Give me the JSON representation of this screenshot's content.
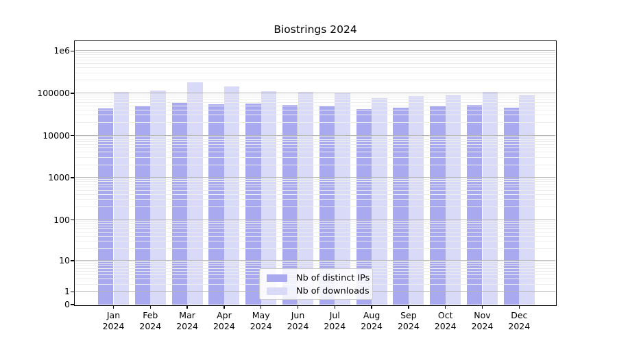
{
  "chart_data": {
    "type": "bar",
    "title": "Biostrings 2024",
    "year_label": "2024",
    "categories": [
      "Jan",
      "Feb",
      "Mar",
      "Apr",
      "May",
      "Jun",
      "Jul",
      "Aug",
      "Sep",
      "Oct",
      "Nov",
      "Dec"
    ],
    "series": [
      {
        "name": "Nb of distinct IPs",
        "color": "#a9a9f0",
        "values": [
          43700,
          49400,
          61100,
          55300,
          57400,
          53800,
          50700,
          42100,
          46400,
          51900,
          52600,
          46400
        ]
      },
      {
        "name": "Nb of downloads",
        "color": "#d9d9f8",
        "values": [
          109000,
          115000,
          182000,
          144000,
          112000,
          109000,
          99300,
          76400,
          86400,
          94200,
          107000,
          94200
        ]
      }
    ],
    "y_scale": "log10(value+1)",
    "y_ticks": [
      0,
      1,
      10,
      100,
      1000,
      10000,
      100000,
      1000000
    ],
    "y_tick_labels": [
      "0",
      "1",
      "10",
      "100",
      "1000",
      "10000",
      "100000",
      "1e6"
    ],
    "ylim": [
      0,
      1600000
    ],
    "xlabel": "",
    "ylabel": "",
    "grid": "major and minor horizontal gridlines, drawn over bars",
    "legend_position": "lower center"
  }
}
